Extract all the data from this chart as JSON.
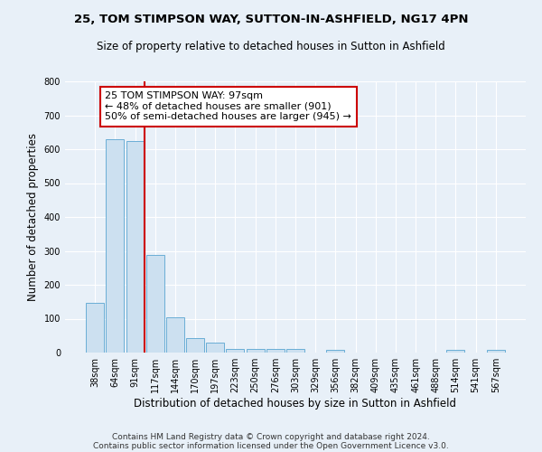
{
  "title": "25, TOM STIMPSON WAY, SUTTON-IN-ASHFIELD, NG17 4PN",
  "subtitle": "Size of property relative to detached houses in Sutton in Ashfield",
  "xlabel": "Distribution of detached houses by size in Sutton in Ashfield",
  "ylabel": "Number of detached properties",
  "footer_line1": "Contains HM Land Registry data © Crown copyright and database right 2024.",
  "footer_line2": "Contains public sector information licensed under the Open Government Licence v3.0.",
  "bar_labels": [
    "38sqm",
    "64sqm",
    "91sqm",
    "117sqm",
    "144sqm",
    "170sqm",
    "197sqm",
    "223sqm",
    "250sqm",
    "276sqm",
    "303sqm",
    "329sqm",
    "356sqm",
    "382sqm",
    "409sqm",
    "435sqm",
    "461sqm",
    "488sqm",
    "514sqm",
    "541sqm",
    "567sqm"
  ],
  "bar_values": [
    148,
    630,
    625,
    288,
    103,
    42,
    29,
    11,
    12,
    11,
    10,
    0,
    8,
    0,
    0,
    0,
    0,
    0,
    7,
    0,
    8
  ],
  "bar_color": "#cce0f0",
  "bar_edge_color": "#6aaed6",
  "red_line_index": 2,
  "annotation_line1": "25 TOM STIMPSON WAY: 97sqm",
  "annotation_line2": "← 48% of detached houses are smaller (901)",
  "annotation_line3": "50% of semi-detached houses are larger (945) →",
  "ylim": [
    0,
    800
  ],
  "yticks": [
    0,
    100,
    200,
    300,
    400,
    500,
    600,
    700,
    800
  ],
  "background_color": "#e8f0f8",
  "grid_color": "#ffffff",
  "title_fontsize": 9.5,
  "subtitle_fontsize": 8.5,
  "xlabel_fontsize": 8.5,
  "ylabel_fontsize": 8.5,
  "tick_fontsize": 7,
  "footer_fontsize": 6.5,
  "annotation_fontsize": 8,
  "annotation_box_color": "#ffffff",
  "annotation_box_edge": "#cc0000",
  "red_line_color": "#cc0000"
}
